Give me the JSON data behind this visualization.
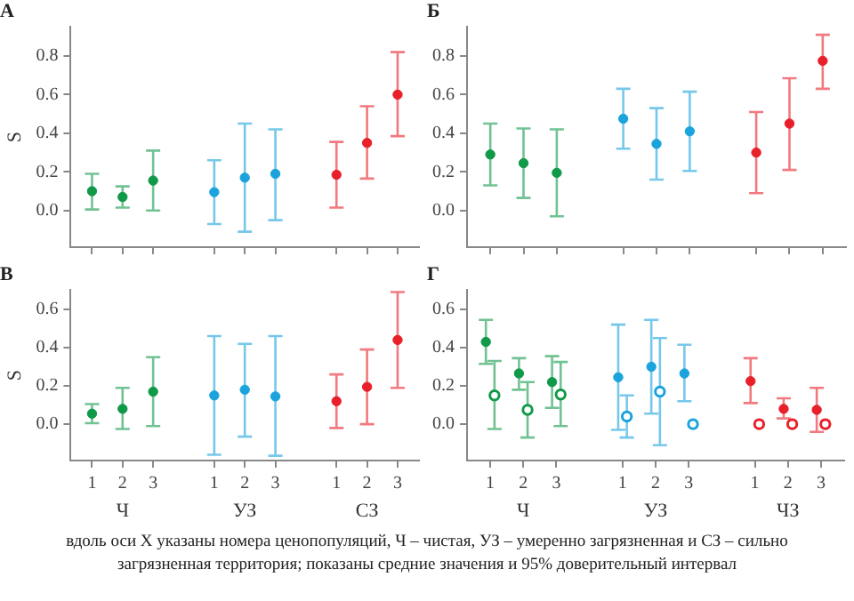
{
  "chart_data": [
    {
      "type": "scatter",
      "title": "А",
      "ylabel": "S",
      "categories": [
        "1",
        "2",
        "3",
        null,
        "1",
        "2",
        "3",
        null,
        "1",
        "2",
        "3"
      ],
      "marker": "circle",
      "tick_labels": "y",
      "series": [
        {
          "colors": [
            "#11994a",
            "#11994a",
            "#11994a",
            null,
            "#1aa3dc",
            "#1aa3dc",
            "#1aa3dc",
            null,
            "#e8202a",
            "#e8202a",
            "#e8202a"
          ],
          "values": [
            0.1,
            0.07,
            0.155,
            null,
            0.095,
            0.17,
            0.19,
            null,
            0.185,
            0.35,
            0.6
          ],
          "errors": [
            [
              0.005,
              0.19
            ],
            [
              0.015,
              0.125
            ],
            [
              0,
              0.31
            ],
            null,
            [
              -0.07,
              0.26
            ],
            [
              -0.11,
              0.45
            ],
            [
              -0.05,
              0.42
            ],
            null,
            [
              0.015,
              0.355
            ],
            [
              0.165,
              0.54
            ],
            [
              0.385,
              0.82
            ]
          ]
        }
      ],
      "ylim": [
        -0.19,
        0.95
      ],
      "yticks": [
        {
          "value": 0,
          "label": "0.0"
        },
        {
          "value": 0.2,
          "label": "0.2"
        },
        {
          "value": 0.4,
          "label": "0.4"
        },
        {
          "value": 0.6,
          "label": "0.6"
        },
        {
          "value": 0.8,
          "label": "0.8"
        }
      ]
    },
    {
      "type": "scatter",
      "title": "Б",
      "categories": [
        "1",
        "2",
        "3",
        null,
        "1",
        "2",
        "3",
        null,
        "1",
        "2",
        "3"
      ],
      "marker": "circle",
      "tick_labels": "y",
      "series": [
        {
          "colors": [
            "#11994a",
            "#11994a",
            "#11994a",
            null,
            "#1aa3dc",
            "#1aa3dc",
            "#1aa3dc",
            null,
            "#e8202a",
            "#e8202a",
            "#e8202a"
          ],
          "values": [
            0.29,
            0.245,
            0.195,
            null,
            0.475,
            0.345,
            0.41,
            null,
            0.3,
            0.45,
            0.775
          ],
          "errors": [
            [
              0.13,
              0.45
            ],
            [
              0.065,
              0.425
            ],
            [
              -0.03,
              0.42
            ],
            null,
            [
              0.32,
              0.63
            ],
            [
              0.16,
              0.53
            ],
            [
              0.205,
              0.615
            ],
            null,
            [
              0.09,
              0.51
            ],
            [
              0.21,
              0.685
            ],
            [
              0.63,
              0.91
            ]
          ]
        }
      ],
      "ylim": [
        -0.19,
        0.95
      ],
      "yticks": [
        {
          "value": 0,
          "label": "0.0"
        },
        {
          "value": 0.2,
          "label": "0.2"
        },
        {
          "value": 0.4,
          "label": "0.4"
        },
        {
          "value": 0.6,
          "label": "0.6"
        },
        {
          "value": 0.8,
          "label": "0.8"
        }
      ]
    },
    {
      "type": "scatter",
      "title": "В",
      "ylabel": "S",
      "categories": [
        "1",
        "2",
        "3",
        null,
        "1",
        "2",
        "3",
        null,
        "1",
        "2",
        "3"
      ],
      "marker": "circle",
      "series": [
        {
          "colors": [
            "#11994a",
            "#11994a",
            "#11994a",
            null,
            "#1aa3dc",
            "#1aa3dc",
            "#1aa3dc",
            null,
            "#e8202a",
            "#e8202a",
            "#e8202a"
          ],
          "values": [
            0.055,
            0.08,
            0.17,
            null,
            0.15,
            0.18,
            0.145,
            null,
            0.12,
            0.195,
            0.44
          ],
          "errors": [
            [
              0.005,
              0.105
            ],
            [
              -0.025,
              0.19
            ],
            [
              -0.01,
              0.35
            ],
            null,
            [
              -0.16,
              0.46
            ],
            [
              -0.065,
              0.42
            ],
            [
              -0.165,
              0.46
            ],
            null,
            [
              -0.02,
              0.26
            ],
            [
              0,
              0.39
            ],
            [
              0.19,
              0.69
            ]
          ]
        }
      ],
      "ylim": [
        -0.19,
        0.7
      ],
      "yticks": [
        {
          "value": 0,
          "label": "0.0"
        },
        {
          "value": 0.2,
          "label": "0.2"
        },
        {
          "value": 0.4,
          "label": "0.4"
        },
        {
          "value": 0.6,
          "label": "0.6"
        }
      ],
      "annotations": [
        "Ч",
        "УЗ",
        "СЗ"
      ]
    },
    {
      "type": "scatter",
      "title": "Г",
      "categories": [
        "1",
        "2",
        "3",
        null,
        "1",
        "2",
        "3",
        null,
        "1",
        "2",
        "3"
      ],
      "marker": "circle",
      "series": [
        {
          "colors": [
            "#11994a",
            "#11994a",
            "#11994a",
            null,
            "#1aa3dc",
            "#1aa3dc",
            "#1aa3dc",
            null,
            "#e8202a",
            "#e8202a",
            "#e8202a"
          ],
          "values": [
            0.43,
            0.265,
            0.22,
            null,
            0.245,
            0.3,
            0.265,
            null,
            0.225,
            0.08,
            0.075
          ],
          "errors": [
            [
              0.315,
              0.545
            ],
            [
              0.18,
              0.345
            ],
            [
              0.085,
              0.355
            ],
            null,
            [
              -0.03,
              0.52
            ],
            [
              0.055,
              0.545
            ],
            [
              0.12,
              0.415
            ],
            null,
            [
              0.11,
              0.345
            ],
            [
              0.03,
              0.135
            ],
            [
              -0.04,
              0.19
            ]
          ]
        },
        {
          "colors": [
            "#11994a",
            "#11994a",
            "#11994a",
            null,
            "#1aa3dc",
            "#1aa3dc",
            "#1aa3dc",
            null,
            "#e8202a",
            "#e8202a",
            "#e8202a"
          ],
          "values": [
            0.15,
            0.075,
            0.155,
            null,
            0.04,
            0.17,
            0,
            null,
            0,
            0,
            0
          ],
          "errors": [
            [
              -0.025,
              0.33
            ],
            [
              -0.07,
              0.22
            ],
            [
              -0.01,
              0.325
            ],
            null,
            [
              -0.07,
              0.15
            ],
            [
              -0.11,
              0.45
            ],
            null,
            null,
            null,
            null,
            null
          ]
        }
      ],
      "ylim": [
        -0.19,
        0.7
      ],
      "yticks": [
        {
          "value": 0,
          "label": "0.0"
        },
        {
          "value": 0.2,
          "label": "0.2"
        },
        {
          "value": 0.4,
          "label": "0.4"
        },
        {
          "value": 0.6,
          "label": "0.6"
        }
      ],
      "annotations": [
        "Ч",
        "УЗ",
        "ЧЗ",
        "вдоль оси X указаны номера ценопопуляций, Ч – чистая, УЗ – умеренно загрязненная и СЗ – сильно загрязненная территория; показаны средние значения и 95% доверительный интервал"
      ]
    }
  ]
}
